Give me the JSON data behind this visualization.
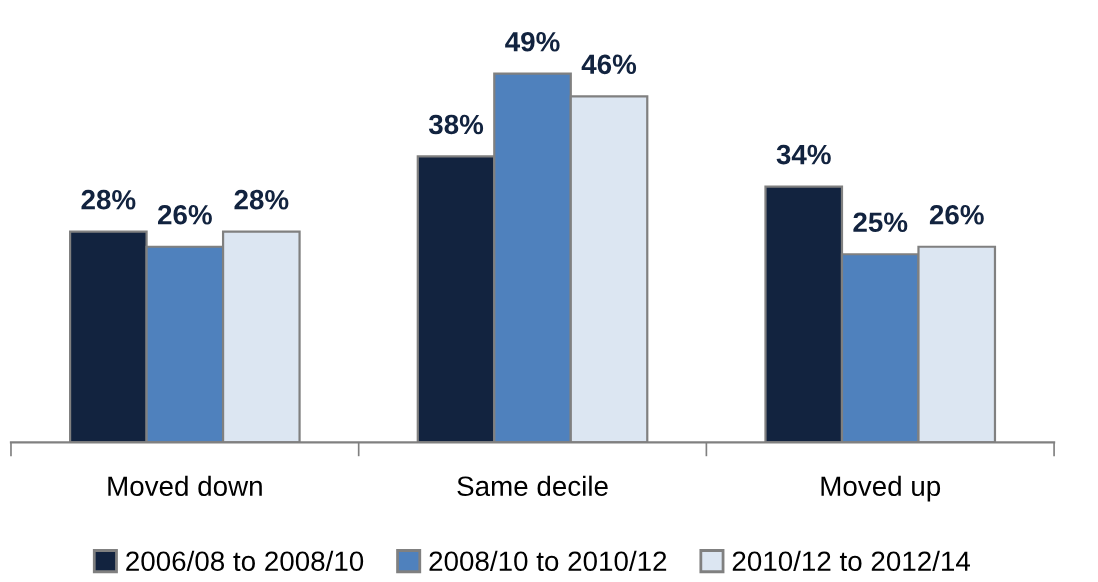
{
  "chart_data": {
    "type": "bar",
    "categories": [
      "Moved down",
      "Same decile",
      "Moved up"
    ],
    "series": [
      {
        "name": "2006/08 to 2008/10",
        "color": "#12233f",
        "values": [
          28,
          38,
          34
        ],
        "value_labels": [
          "28%",
          "38%",
          "34%"
        ]
      },
      {
        "name": "2008/10 to 2010/12",
        "color": "#4f81bd",
        "values": [
          26,
          49,
          25
        ],
        "value_labels": [
          "26%",
          "49%",
          "25%"
        ]
      },
      {
        "name": "2010/12 to 2012/14",
        "color": "#dce6f2",
        "values": [
          28,
          46,
          26
        ],
        "value_labels": [
          "28%",
          "46%",
          "26%"
        ]
      }
    ],
    "legend": "bottom",
    "tick_labels": "x",
    "grid": false
  }
}
